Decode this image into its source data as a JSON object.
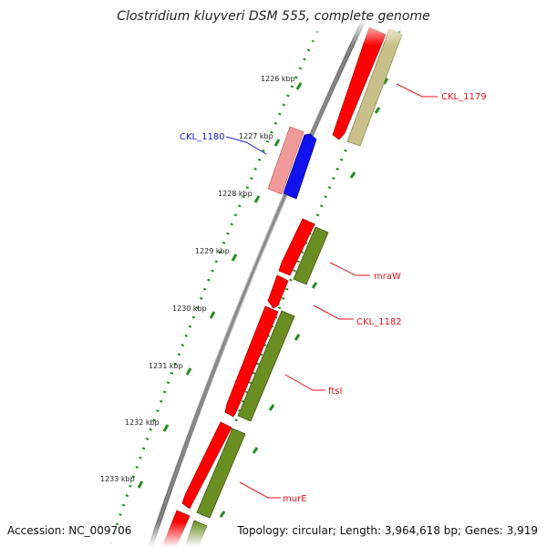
{
  "map": {
    "title": "Clostridium kluyveri DSM 555, complete genome",
    "accession": "Accession: NC_009706",
    "summary": "Topology: circular; Length: 3,964,618 bp; Genes: 3,919",
    "tick_labels": [
      "1226 kbp",
      "1227 kbp",
      "1228 kbp",
      "1229 kbp",
      "1230 kbp",
      "1231 kbp",
      "1232 kbp",
      "1233 kbp"
    ],
    "gene_labels": [
      {
        "name": "CKL_1179",
        "color": "#e0141e"
      },
      {
        "name": "CKL_1180",
        "color": "#1a1acc"
      },
      {
        "name": "mraW",
        "color": "#e0141e"
      },
      {
        "name": "CKL_1182",
        "color": "#e0141e"
      },
      {
        "name": "ftsI",
        "color": "#e0141e"
      },
      {
        "name": "murE",
        "color": "#e0141e"
      }
    ],
    "colors": {
      "cds": "#ff0000",
      "cds_light": "#f09a9a",
      "gene_olive": "#6b8e23",
      "gene_khaki": "#c8c088",
      "highlight": "#1111ee",
      "backbone": "#888888",
      "ticks": "#228b22"
    }
  }
}
